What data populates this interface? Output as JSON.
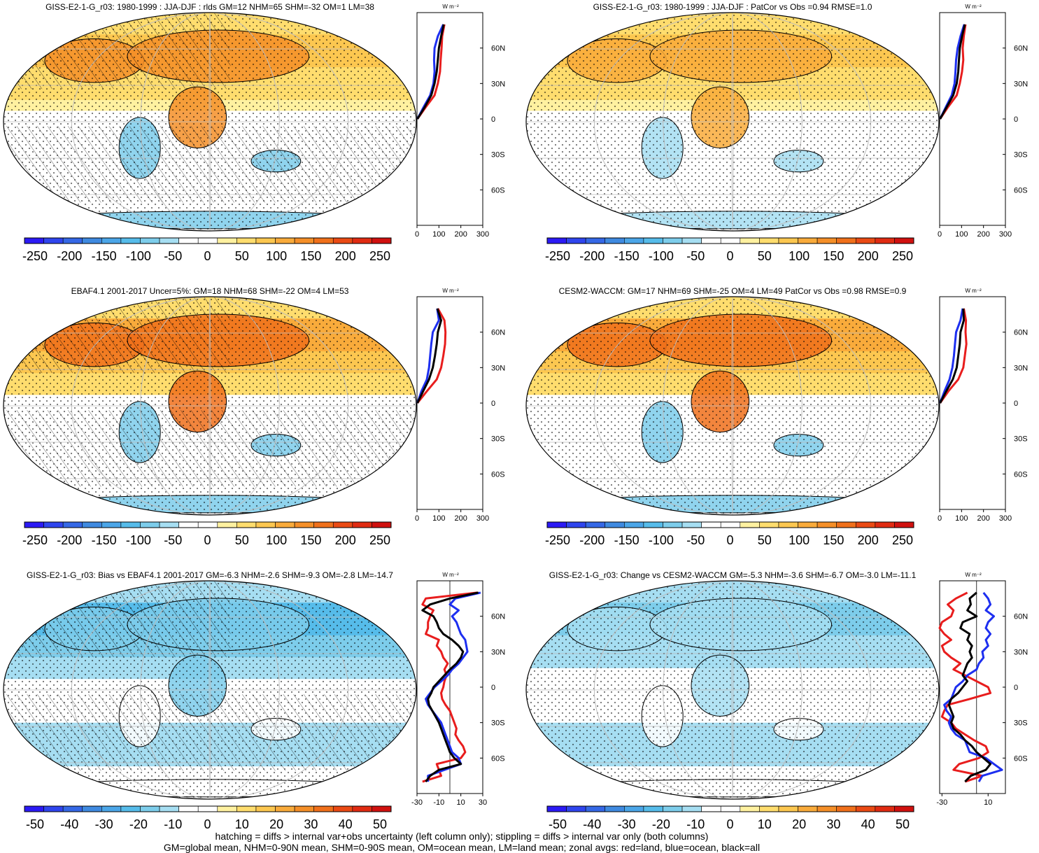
{
  "footer": {
    "line1": "hatching = diffs > internal var+obs uncertainty (left column only); stippling = diffs > internal var only (both columns)",
    "line2": "GM=global mean, NHM=0-90N mean, SHM=0-90S mean, OM=ocean mean, LM=land mean; zonal avgs: red=land, blue=ocean, black=all"
  },
  "colors": {
    "land": "#e81d1d",
    "ocean": "#1d2ff0",
    "all": "#000000",
    "palette": [
      "#2b1af5",
      "#2f45ee",
      "#3568e6",
      "#3f8ae0",
      "#4ba6e8",
      "#56bcea",
      "#7dcdeb",
      "#a6def2",
      "#ffffff",
      "#ffffff",
      "#fff1a0",
      "#ffdd6e",
      "#fcc750",
      "#f9ab3b",
      "#f58f28",
      "#f0701b",
      "#ea4a14",
      "#e02b12",
      "#d0110f"
    ]
  },
  "chart_data": [
    {
      "type": "heatmap",
      "title": "GISS-E2-1-G_r03: 1980-1999 : JJA-DJF : rlds GM=12 NHM=65 SHM=-32 OM=1 LM=38",
      "colorbar_ticks": [
        "-250",
        "-200",
        "-150",
        "-100",
        "-50",
        "0",
        "50",
        "100",
        "150",
        "200",
        "250"
      ],
      "hatching": true,
      "stippling": true,
      "field": {
        "nh_level": 3,
        "sh_level": -1,
        "land_boost": 0.4
      },
      "zonal": {
        "type": "line",
        "unit": "W m⁻²",
        "x_ticks": [
          "0",
          "100",
          "200",
          "300"
        ],
        "xlim": [
          0,
          300
        ],
        "lat_ticks": [
          "60N",
          "30N",
          "0",
          "30S",
          "60S"
        ],
        "lat": [
          80,
          70,
          60,
          50,
          40,
          30,
          20,
          10,
          0
        ],
        "series": [
          {
            "color_key": "land",
            "values": [
              125,
              115,
              112,
              108,
              105,
              95,
              80,
              40,
              2
            ]
          },
          {
            "color_key": "ocean",
            "values": [
              120,
              95,
              80,
              78,
              80,
              75,
              60,
              30,
              2
            ]
          },
          {
            "color_key": "all",
            "values": [
              122,
              110,
              100,
              95,
              90,
              80,
              65,
              35,
              2
            ]
          }
        ]
      }
    },
    {
      "type": "heatmap",
      "title": "GISS-E2-1-G_r03: 1980-1999 : JJA-DJF : PatCor vs Obs =0.94 RMSE=1.0",
      "colorbar_ticks": [
        "-250",
        "-200",
        "-150",
        "-100",
        "-50",
        "0",
        "50",
        "100",
        "150",
        "200",
        "250"
      ],
      "hatching": false,
      "stippling": true,
      "field": {
        "nh_level": 3,
        "sh_level": -1,
        "land_boost": 0.3
      },
      "zonal": {
        "type": "line",
        "unit": "W m⁻²",
        "x_ticks": [
          "0",
          "100",
          "200",
          "300"
        ],
        "xlim": [
          0,
          300
        ],
        "lat_ticks": [
          "60N",
          "30N",
          "0",
          "30S",
          "60S"
        ],
        "lat": [
          80,
          70,
          60,
          50,
          40,
          30,
          20,
          10,
          0
        ],
        "series": [
          {
            "color_key": "land",
            "values": [
              118,
              110,
              105,
              108,
              102,
              92,
              78,
              38,
              2
            ]
          },
          {
            "color_key": "ocean",
            "values": [
              112,
              95,
              82,
              75,
              72,
              68,
              55,
              28,
              2
            ]
          },
          {
            "color_key": "all",
            "values": [
              115,
              102,
              92,
              88,
              85,
              78,
              62,
              32,
              2
            ]
          }
        ]
      }
    },
    {
      "type": "heatmap",
      "title": "EBAF4.1 2001-2017 Uncer=5%: GM=18 NHM=68 SHM=-22 OM=4 LM=53",
      "colorbar_ticks": [
        "-250",
        "-200",
        "-150",
        "-100",
        "-50",
        "0",
        "50",
        "100",
        "150",
        "200",
        "250"
      ],
      "hatching": true,
      "stippling": true,
      "field": {
        "nh_level": 4,
        "sh_level": -1,
        "land_boost": 0.5
      },
      "zonal": {
        "type": "line",
        "unit": "W m⁻²",
        "x_ticks": [
          "0",
          "100",
          "200",
          "300"
        ],
        "xlim": [
          0,
          300
        ],
        "lat_ticks": [
          "60N",
          "30N",
          "0",
          "30S",
          "60S"
        ],
        "lat": [
          80,
          70,
          60,
          50,
          40,
          30,
          20,
          10,
          0
        ],
        "series": [
          {
            "color_key": "land",
            "values": [
              95,
              125,
              130,
              128,
              120,
              110,
              90,
              45,
              2
            ]
          },
          {
            "color_key": "ocean",
            "values": [
              92,
              100,
              72,
              65,
              60,
              55,
              45,
              20,
              2
            ]
          },
          {
            "color_key": "all",
            "values": [
              93,
              110,
              95,
              90,
              82,
              72,
              55,
              28,
              2
            ]
          }
        ]
      }
    },
    {
      "type": "heatmap",
      "title": "CESM2-WACCM: GM=17 NHM=69 SHM=-25 OM=4 LM=49 PatCor vs Obs =0.98 RMSE=0.9",
      "colorbar_ticks": [
        "-250",
        "-200",
        "-150",
        "-100",
        "-50",
        "0",
        "50",
        "100",
        "150",
        "200",
        "250"
      ],
      "hatching": false,
      "stippling": true,
      "field": {
        "nh_level": 4,
        "sh_level": -1,
        "land_boost": 0.5
      },
      "zonal": {
        "type": "line",
        "unit": "W m⁻²",
        "x_ticks": [
          "0",
          "100",
          "200",
          "300"
        ],
        "xlim": [
          0,
          300
        ],
        "lat_ticks": [
          "60N",
          "30N",
          "0",
          "30S",
          "60S"
        ],
        "lat": [
          80,
          70,
          60,
          50,
          40,
          30,
          20,
          10,
          0
        ],
        "series": [
          {
            "color_key": "land",
            "values": [
              110,
              120,
              118,
              122,
              115,
              108,
              85,
              40,
              2
            ]
          },
          {
            "color_key": "ocean",
            "values": [
              105,
              95,
              75,
              70,
              65,
              58,
              45,
              22,
              2
            ]
          },
          {
            "color_key": "all",
            "values": [
              108,
              110,
              95,
              92,
              85,
              78,
              60,
              30,
              2
            ]
          }
        ]
      }
    },
    {
      "type": "heatmap",
      "title": "GISS-E2-1-G_r03: Bias vs EBAF4.1 2001-2017 GM=-6.3 NHM=-2.6 SHM=-9.3 OM=-2.8 LM=-14.7",
      "colorbar_ticks": [
        "-50",
        "-40",
        "-30",
        "-20",
        "-10",
        "0",
        "10",
        "20",
        "30",
        "40",
        "50"
      ],
      "hatching": true,
      "stippling": true,
      "field": {
        "nh_level": -4,
        "sh_level": -2,
        "land_boost": -0.3
      },
      "zonal": {
        "type": "line",
        "unit": "W m⁻²",
        "x_ticks": [
          "-30",
          "-10",
          "10",
          "30"
        ],
        "xlim": [
          -30,
          30
        ],
        "lat_ticks": [
          "60N",
          "30N",
          "0",
          "30S",
          "60S"
        ],
        "lat": [
          80,
          75,
          70,
          65,
          60,
          55,
          50,
          45,
          40,
          35,
          30,
          25,
          20,
          15,
          10,
          5,
          0,
          -5,
          -10,
          -15,
          -20,
          -25,
          -30,
          -35,
          -40,
          -45,
          -50,
          -55,
          -60,
          -65,
          -70,
          -75,
          -80
        ],
        "series": [
          {
            "color_key": "land",
            "values": [
              25,
              -22,
              -25,
              -15,
              -18,
              -20,
              -20,
              -22,
              -10,
              -12,
              -8,
              -6,
              -2,
              -5,
              -3,
              -5,
              -6,
              -8,
              -7,
              -4,
              0,
              2,
              4,
              6,
              5,
              8,
              12,
              14,
              10,
              -12,
              -10,
              -8,
              -25
            ]
          },
          {
            "color_key": "ocean",
            "values": [
              28,
              5,
              0,
              8,
              2,
              6,
              8,
              10,
              14,
              15,
              16,
              12,
              8,
              2,
              -2,
              -8,
              -14,
              -18,
              -22,
              -20,
              -16,
              -12,
              -8,
              -6,
              -4,
              -2,
              0,
              2,
              8,
              10,
              -5,
              -20,
              -20
            ]
          },
          {
            "color_key": "all",
            "values": [
              26,
              0,
              -18,
              -25,
              -15,
              -12,
              -10,
              -6,
              2,
              8,
              12,
              10,
              6,
              0,
              -5,
              -10,
              -15,
              -17,
              -20,
              -19,
              -16,
              -13,
              -10,
              -8,
              -6,
              -4,
              -2,
              0,
              4,
              10,
              -10,
              -18,
              -22
            ]
          }
        ]
      }
    },
    {
      "type": "heatmap",
      "title": "GISS-E2-1-G_r03: Change vs CESM2-WACCM GM=-5.3 NHM=-3.6 SHM=-6.7 OM=-3.0 LM=-11.1",
      "colorbar_ticks": [
        "-50",
        "-40",
        "-30",
        "-20",
        "-10",
        "0",
        "10",
        "20",
        "30",
        "40",
        "50"
      ],
      "hatching": false,
      "stippling": true,
      "field": {
        "nh_level": -3,
        "sh_level": -2,
        "land_boost": -0.2
      },
      "zonal": {
        "type": "line",
        "unit": "W m⁻²",
        "x_ticks": [
          "-30",
          "10"
        ],
        "xlim": [
          -32,
          25
        ],
        "lat_ticks": [
          "60N",
          "30N",
          "0",
          "30S",
          "60S"
        ],
        "lat": [
          80,
          75,
          70,
          65,
          60,
          55,
          50,
          45,
          40,
          35,
          30,
          25,
          20,
          15,
          10,
          5,
          0,
          -5,
          -10,
          -15,
          -20,
          -25,
          -30,
          -35,
          -40,
          -45,
          -50,
          -55,
          -60,
          -65,
          -70,
          -75,
          -80
        ],
        "series": [
          {
            "color_key": "land",
            "values": [
              -8,
              -18,
              -25,
              -20,
              -22,
              -30,
              -32,
              -28,
              -22,
              -30,
              -28,
              -22,
              -14,
              -20,
              -10,
              0,
              10,
              12,
              -6,
              -25,
              -28,
              -30,
              -22,
              -18,
              -10,
              -2,
              8,
              10,
              2,
              -15,
              -20,
              5,
              -10
            ]
          },
          {
            "color_key": "ocean",
            "values": [
              6,
              10,
              12,
              8,
              15,
              10,
              8,
              12,
              8,
              10,
              5,
              6,
              2,
              0,
              -8,
              -12,
              -18,
              -20,
              -22,
              -28,
              -26,
              -22,
              -24,
              -22,
              -18,
              -10,
              -8,
              -6,
              8,
              15,
              22,
              5,
              2
            ]
          },
          {
            "color_key": "all",
            "values": [
              0,
              -6,
              -5,
              -8,
              0,
              -12,
              -14,
              -6,
              -8,
              -4,
              -6,
              -4,
              -8,
              -10,
              -12,
              -8,
              -12,
              -16,
              -22,
              -24,
              -22,
              -20,
              -22,
              -20,
              -14,
              -10,
              -4,
              0,
              6,
              12,
              8,
              -5,
              -10
            ]
          }
        ]
      }
    }
  ]
}
